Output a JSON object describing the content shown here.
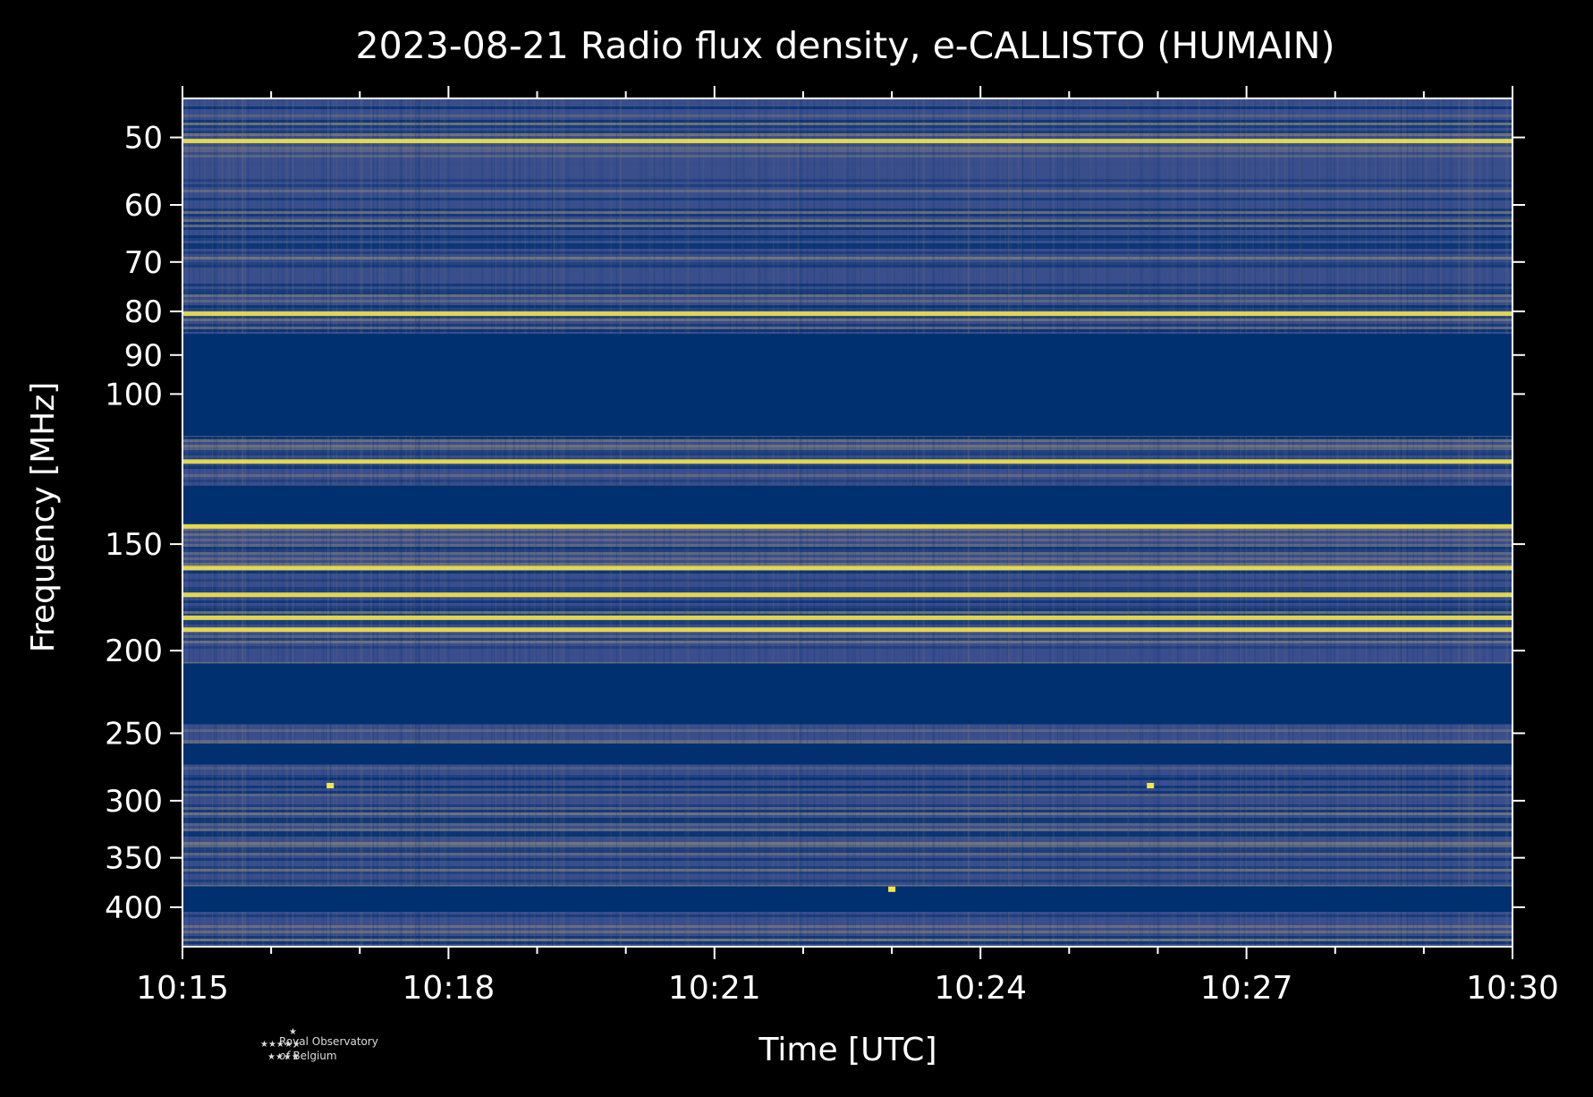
{
  "chart_data": {
    "type": "heatmap",
    "title": "2023-08-21 Radio flux density, e-CALLISTO (HUMAIN)",
    "xlabel": "Time [UTC]",
    "ylabel": "Frequency [MHz]",
    "x_ticks": [
      "10:15",
      "10:18",
      "10:21",
      "10:24",
      "10:27",
      "10:30"
    ],
    "x_range": [
      "10:15",
      "10:30"
    ],
    "y_scale": "log",
    "y_ticks": [
      50,
      60,
      70,
      80,
      90,
      100,
      150,
      200,
      250,
      300,
      350,
      400
    ],
    "y_range": [
      45,
      445
    ],
    "colormap": [
      "#00306f",
      "#3a4e8c",
      "#7c7b78",
      "#f5e64c"
    ],
    "masked_bands_mhz": [
      [
        85,
        112
      ],
      [
        128,
        142
      ],
      [
        207,
        244
      ],
      [
        257,
        272
      ],
      [
        378,
        405
      ]
    ],
    "bright_bands_mhz": [
      50.5,
      80.5,
      120,
      143,
      160,
      172,
      183,
      189
    ],
    "bursts": [
      {
        "freq_mhz": 288,
        "time": "10:16:40"
      },
      {
        "freq_mhz": 288,
        "time": "10:25:55"
      },
      {
        "freq_mhz": 381,
        "time": "10:23:00"
      }
    ]
  },
  "footer": {
    "logo_line1": "Royal Observatory",
    "logo_of": "of",
    "logo_line2": "Belgium"
  }
}
